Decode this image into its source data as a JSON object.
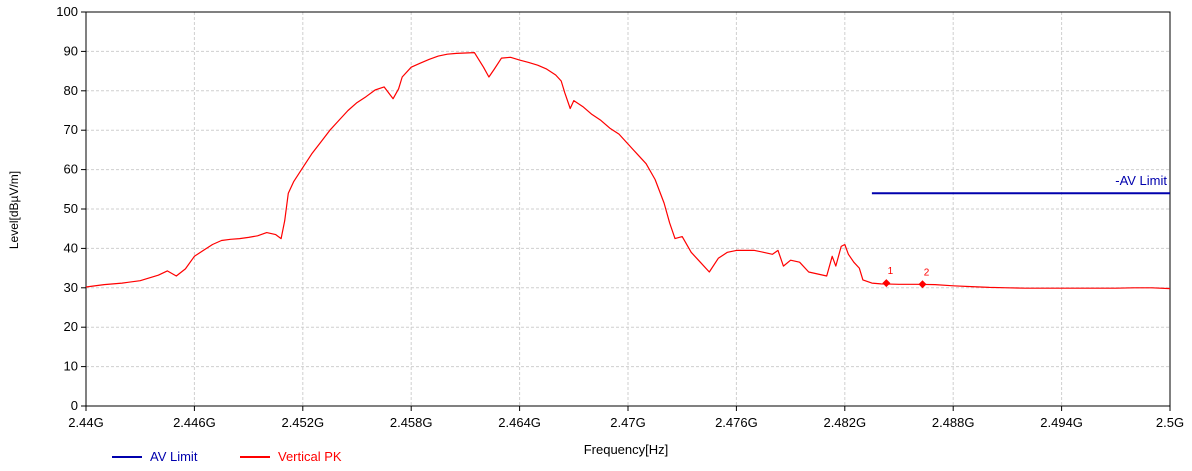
{
  "chart_data": {
    "type": "line",
    "xlabel": "Frequency[Hz]",
    "ylabel": "Level[dBµV/m]",
    "xlim": [
      2.44,
      2.5
    ],
    "ylim": [
      0,
      100
    ],
    "grid": true,
    "legend_position": "bottom-left",
    "x_ticks": [
      {
        "value": 2.44,
        "label": "2.44G"
      },
      {
        "value": 2.446,
        "label": "2.446G"
      },
      {
        "value": 2.452,
        "label": "2.452G"
      },
      {
        "value": 2.458,
        "label": "2.458G"
      },
      {
        "value": 2.464,
        "label": "2.464G"
      },
      {
        "value": 2.47,
        "label": "2.47G"
      },
      {
        "value": 2.476,
        "label": "2.476G"
      },
      {
        "value": 2.482,
        "label": "2.482G"
      },
      {
        "value": 2.488,
        "label": "2.488G"
      },
      {
        "value": 2.494,
        "label": "2.494G"
      },
      {
        "value": 2.5,
        "label": "2.5G"
      }
    ],
    "y_ticks": [
      0,
      10,
      20,
      30,
      40,
      50,
      60,
      70,
      80,
      90,
      100
    ],
    "series": [
      {
        "name": "AV Limit",
        "color": "#0000ad",
        "label": "-AV Limit",
        "x": [
          2.4835,
          2.5
        ],
        "y": [
          54,
          54
        ]
      },
      {
        "name": "Vertical PK",
        "color": "#ff0000",
        "x": [
          2.44,
          2.441,
          2.442,
          2.443,
          2.4435,
          2.444,
          2.4445,
          2.445,
          2.4455,
          2.446,
          2.4465,
          2.447,
          2.4475,
          2.448,
          2.4485,
          2.449,
          2.4495,
          2.45,
          2.4505,
          2.4508,
          2.451,
          2.4512,
          2.4515,
          2.452,
          2.4525,
          2.453,
          2.4535,
          2.454,
          2.4545,
          2.455,
          2.4555,
          2.456,
          2.4565,
          2.457,
          2.4573,
          2.4575,
          2.458,
          2.4585,
          2.459,
          2.4595,
          2.46,
          2.4605,
          2.461,
          2.4615,
          2.462,
          2.4623,
          2.4626,
          2.463,
          2.4635,
          2.464,
          2.4645,
          2.465,
          2.4655,
          2.466,
          2.4663,
          2.4665,
          2.4668,
          2.467,
          2.4675,
          2.468,
          2.4685,
          2.469,
          2.4695,
          2.47,
          2.4705,
          2.471,
          2.4715,
          2.472,
          2.4723,
          2.4726,
          2.473,
          2.4735,
          2.474,
          2.4745,
          2.475,
          2.4755,
          2.476,
          2.4765,
          2.477,
          2.4775,
          2.478,
          2.4783,
          2.4786,
          2.479,
          2.4795,
          2.48,
          2.4805,
          2.481,
          2.4813,
          2.4815,
          2.4818,
          2.482,
          2.4822,
          2.4825,
          2.4828,
          2.483,
          2.4835,
          2.484,
          2.485,
          2.486,
          2.487,
          2.488,
          2.489,
          2.49,
          2.491,
          2.492,
          2.493,
          2.494,
          2.495,
          2.496,
          2.497,
          2.498,
          2.499,
          2.5
        ],
        "y": [
          30.2,
          30.8,
          31.2,
          31.8,
          32.5,
          33.2,
          34.3,
          33.0,
          34.8,
          38.0,
          39.5,
          41.0,
          42.0,
          42.3,
          42.5,
          42.8,
          43.2,
          44.0,
          43.5,
          42.5,
          47.0,
          54.0,
          57.0,
          60.5,
          64.0,
          67.0,
          70.0,
          72.5,
          75.0,
          77.0,
          78.5,
          80.2,
          81.0,
          78.0,
          80.5,
          83.5,
          86.0,
          87.0,
          88.0,
          88.8,
          89.3,
          89.5,
          89.6,
          89.7,
          86.0,
          83.5,
          85.5,
          88.3,
          88.5,
          87.8,
          87.2,
          86.5,
          85.5,
          84.0,
          82.5,
          79.5,
          75.5,
          77.5,
          76.0,
          74.0,
          72.5,
          70.5,
          69.0,
          66.5,
          64.0,
          61.5,
          57.5,
          51.5,
          46.5,
          42.5,
          43.0,
          39.0,
          36.5,
          34.0,
          37.5,
          39.0,
          39.5,
          39.5,
          39.5,
          39.0,
          38.5,
          39.5,
          35.5,
          37.0,
          36.5,
          34.0,
          33.5,
          33.0,
          38.0,
          35.5,
          40.5,
          41.0,
          38.5,
          36.5,
          35.0,
          32.0,
          31.2,
          31.0,
          30.9,
          30.9,
          30.8,
          30.5,
          30.3,
          30.1,
          30.0,
          29.9,
          29.9,
          29.9,
          29.9,
          29.9,
          29.9,
          30.0,
          30.0,
          29.8
        ]
      }
    ],
    "markers": [
      {
        "label": "1",
        "x": 2.4843,
        "y": 31.2
      },
      {
        "label": "2",
        "x": 2.4863,
        "y": 30.9
      }
    ],
    "legend": [
      {
        "label": "AV Limit",
        "color": "#0000ad"
      },
      {
        "label": "Vertical PK",
        "color": "#ff0000"
      }
    ]
  }
}
